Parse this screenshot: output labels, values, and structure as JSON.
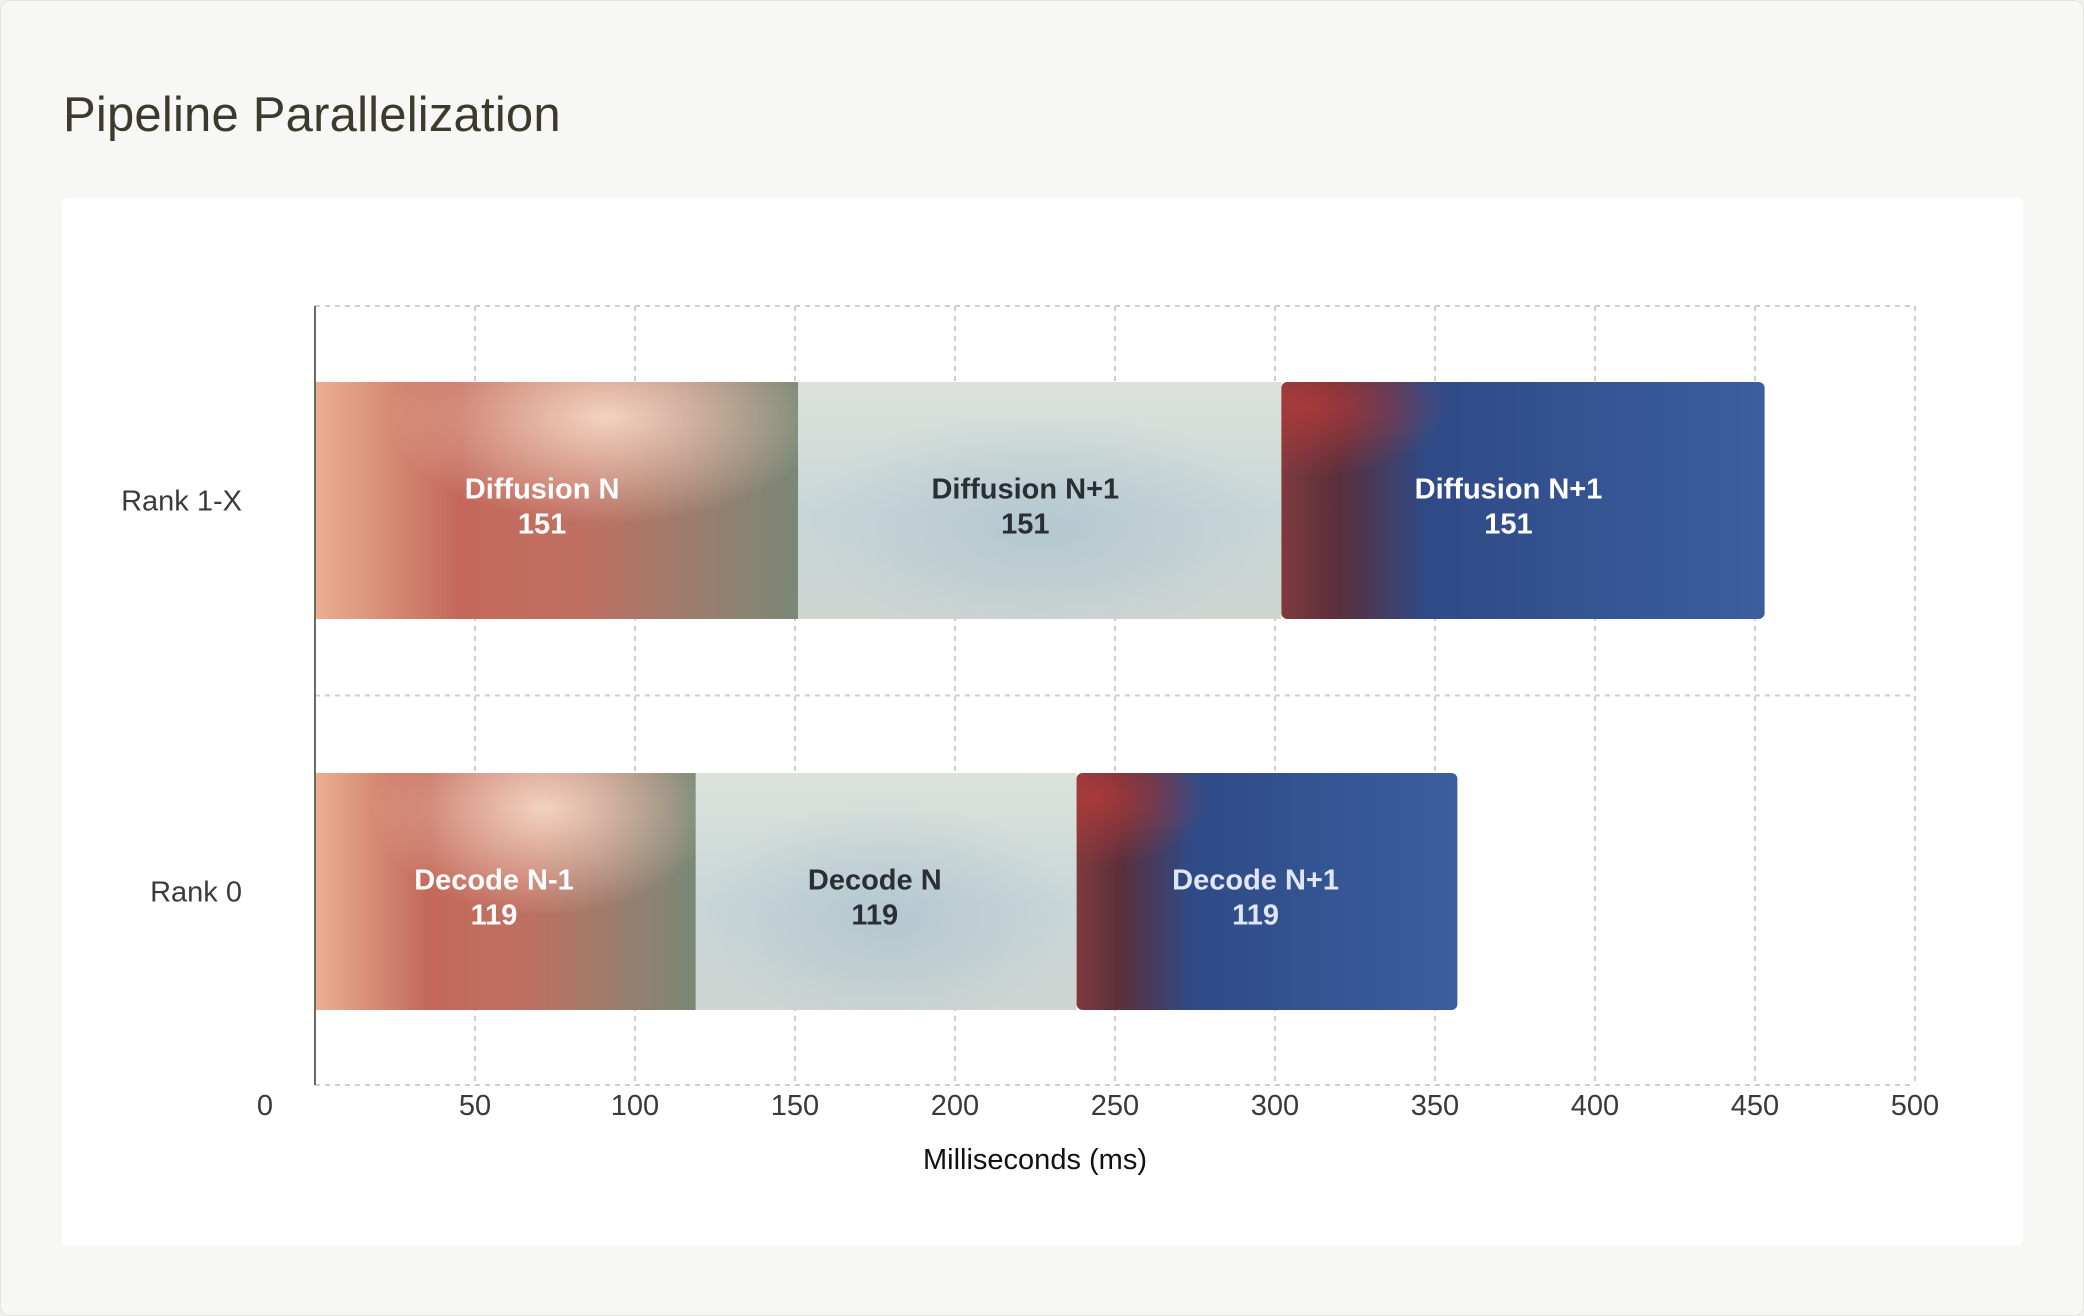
{
  "page": {
    "title": "Pipeline Parallelization"
  },
  "chart_data": {
    "type": "bar",
    "orientation": "horizontal",
    "stacked": true,
    "title": "Pipeline Parallelization",
    "xlabel": "Milliseconds (ms)",
    "ylabel": "",
    "xlim": [
      0,
      500
    ],
    "xticks": [
      0,
      50,
      100,
      150,
      200,
      250,
      300,
      350,
      400,
      450,
      500
    ],
    "grid": true,
    "legend": "none",
    "categories": [
      "Rank 1-X",
      "Rank 0"
    ],
    "rows": [
      {
        "category": "Rank 1-X",
        "segments": [
          {
            "label": "Diffusion N",
            "value": 151,
            "value_label": "151",
            "style": "warm",
            "text_color": "#ffffff"
          },
          {
            "label": "Diffusion N+1",
            "value": 151,
            "value_label": "151",
            "style": "light",
            "text_color": "#2a2f33"
          },
          {
            "label": "Diffusion N+1",
            "value": 151,
            "value_label": "151",
            "style": "blue",
            "text_color": "#ffffff"
          }
        ]
      },
      {
        "category": "Rank 0",
        "segments": [
          {
            "label": "Decode N-1",
            "value": 119,
            "value_label": "119",
            "style": "warm",
            "text_color": "#ffffff"
          },
          {
            "label": "Decode N",
            "value": 119,
            "value_label": "119",
            "style": "light",
            "text_color": "#2a2f33"
          },
          {
            "label": "Decode N+1",
            "value": 119,
            "value_label": "119",
            "style": "blue",
            "text_color": "#dfe6f5"
          }
        ]
      }
    ],
    "colors": {
      "warm_start": "#eab08f",
      "warm_mid": "#c3685a",
      "warm_end": "#7d8a78",
      "light_start": "#d6ddd5",
      "light_end": "#c9d3d1",
      "blue_start": "#8a3d3d",
      "blue_mid": "#33518c",
      "blue_end": "#3a5c9e",
      "grid": "#cfcfcf",
      "axis": "#6a6a6a"
    }
  }
}
